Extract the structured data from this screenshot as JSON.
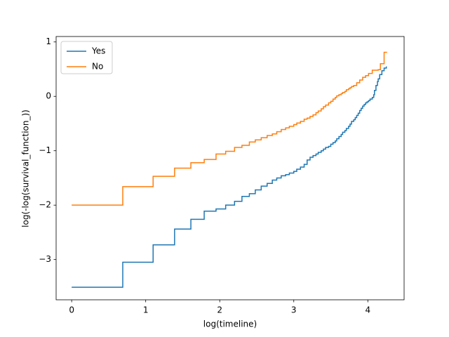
{
  "chart_data": {
    "type": "step",
    "xlabel": "log(timeline)",
    "ylabel": "log(-log(survival_function_))",
    "xlim": [
      -0.21,
      4.49
    ],
    "ylim": [
      -3.74,
      1.1
    ],
    "xticks": [
      0,
      1,
      2,
      3,
      4
    ],
    "yticks": [
      {
        "value": -3,
        "label": "−3"
      },
      {
        "value": -2,
        "label": "−2"
      },
      {
        "value": -1,
        "label": "−1"
      },
      0,
      1
    ],
    "legend": "upper left",
    "series": [
      {
        "name": "Yes",
        "color": "#1f77b4",
        "x": [
          0,
          0.69,
          1.1,
          1.39,
          1.61,
          1.79,
          1.95,
          2.08,
          2.2,
          2.3,
          2.4,
          2.48,
          2.56,
          2.64,
          2.71,
          2.77,
          2.83,
          2.89,
          2.94,
          3.0,
          3.04,
          3.09,
          3.14,
          3.18,
          3.22,
          3.26,
          3.3,
          3.33,
          3.37,
          3.4,
          3.43,
          3.47,
          3.5,
          3.53,
          3.56,
          3.58,
          3.61,
          3.64,
          3.66,
          3.69,
          3.71,
          3.74,
          3.76,
          3.78,
          3.81,
          3.83,
          3.85,
          3.87,
          3.89,
          3.91,
          3.93,
          3.95,
          3.97,
          3.99,
          4.01,
          4.03,
          4.06,
          4.08,
          4.09,
          4.11,
          4.13,
          4.14,
          4.16,
          4.19,
          4.22,
          4.25
        ],
        "values": [
          -3.51,
          -3.05,
          -2.73,
          -2.44,
          -2.26,
          -2.11,
          -2.07,
          -2.0,
          -1.93,
          -1.84,
          -1.79,
          -1.72,
          -1.65,
          -1.6,
          -1.54,
          -1.5,
          -1.46,
          -1.44,
          -1.41,
          -1.38,
          -1.34,
          -1.3,
          -1.25,
          -1.17,
          -1.12,
          -1.09,
          -1.06,
          -1.03,
          -1.0,
          -0.97,
          -0.94,
          -0.92,
          -0.88,
          -0.85,
          -0.82,
          -0.78,
          -0.74,
          -0.7,
          -0.66,
          -0.63,
          -0.59,
          -0.55,
          -0.51,
          -0.46,
          -0.43,
          -0.39,
          -0.35,
          -0.31,
          -0.26,
          -0.22,
          -0.18,
          -0.15,
          -0.12,
          -0.1,
          -0.08,
          -0.05,
          -0.02,
          0.03,
          0.11,
          0.2,
          0.27,
          0.32,
          0.4,
          0.47,
          0.52,
          0.55
        ]
      },
      {
        "name": "No",
        "color": "#ff7f0e",
        "x": [
          0,
          0.69,
          1.1,
          1.39,
          1.61,
          1.79,
          1.95,
          2.08,
          2.2,
          2.3,
          2.4,
          2.48,
          2.56,
          2.64,
          2.71,
          2.77,
          2.83,
          2.89,
          2.94,
          3.0,
          3.04,
          3.09,
          3.14,
          3.18,
          3.22,
          3.26,
          3.3,
          3.33,
          3.37,
          3.4,
          3.43,
          3.47,
          3.5,
          3.53,
          3.56,
          3.58,
          3.61,
          3.64,
          3.66,
          3.69,
          3.71,
          3.74,
          3.76,
          3.78,
          3.81,
          3.85,
          3.89,
          3.93,
          3.97,
          4.01,
          4.06,
          4.14,
          4.17,
          4.22,
          4.26
        ],
        "values": [
          -2.0,
          -1.66,
          -1.47,
          -1.32,
          -1.22,
          -1.16,
          -1.06,
          -1.01,
          -0.94,
          -0.9,
          -0.84,
          -0.8,
          -0.76,
          -0.72,
          -0.69,
          -0.65,
          -0.61,
          -0.58,
          -0.55,
          -0.52,
          -0.49,
          -0.46,
          -0.42,
          -0.4,
          -0.37,
          -0.34,
          -0.3,
          -0.27,
          -0.23,
          -0.19,
          -0.16,
          -0.12,
          -0.09,
          -0.05,
          -0.02,
          0.01,
          0.03,
          0.05,
          0.07,
          0.09,
          0.12,
          0.14,
          0.16,
          0.18,
          0.2,
          0.25,
          0.3,
          0.35,
          0.38,
          0.42,
          0.48,
          0.49,
          0.6,
          0.81,
          0.81
        ]
      }
    ]
  }
}
